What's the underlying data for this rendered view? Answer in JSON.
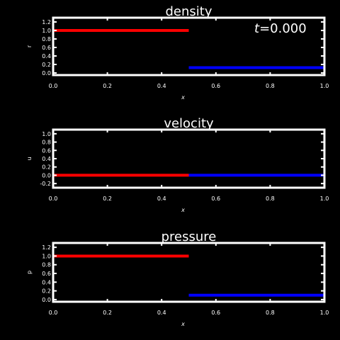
{
  "time_label": {
    "var": "t",
    "eq": "=",
    "value": "0.000"
  },
  "chart_data": [
    {
      "type": "line",
      "title": "density",
      "xlabel": "x",
      "ylabel": "r",
      "xlim": [
        0,
        1
      ],
      "ylim": [
        -0.05,
        1.3
      ],
      "xticks": [
        "0.0",
        "0.2",
        "0.4",
        "0.6",
        "0.8",
        "1.0"
      ],
      "yticks": [
        "0.0",
        "0.2",
        "0.4",
        "0.6",
        "0.8",
        "1.0",
        "1.2"
      ],
      "series": [
        {
          "color": "#ff0000",
          "x": [
            0.0,
            0.5
          ],
          "y": [
            1.0,
            1.0
          ]
        },
        {
          "color": "#0000ff",
          "x": [
            0.5,
            1.0
          ],
          "y": [
            0.125,
            0.125
          ]
        }
      ]
    },
    {
      "type": "line",
      "title": "velocity",
      "xlabel": "x",
      "ylabel": "u",
      "xlim": [
        0,
        1
      ],
      "ylim": [
        -0.3,
        1.1
      ],
      "xticks": [
        "0.0",
        "0.2",
        "0.4",
        "0.6",
        "0.8",
        "1.0"
      ],
      "yticks": [
        "-0.2",
        "0.0",
        "0.2",
        "0.4",
        "0.6",
        "0.8",
        "1.0"
      ],
      "series": [
        {
          "color": "#ff0000",
          "x": [
            0.0,
            0.5
          ],
          "y": [
            0.0,
            0.0
          ]
        },
        {
          "color": "#0000ff",
          "x": [
            0.5,
            1.0
          ],
          "y": [
            0.0,
            0.0
          ]
        }
      ]
    },
    {
      "type": "line",
      "title": "pressure",
      "xlabel": "x",
      "ylabel": "p",
      "xlim": [
        0,
        1
      ],
      "ylim": [
        -0.05,
        1.3
      ],
      "xticks": [
        "0.0",
        "0.2",
        "0.4",
        "0.6",
        "0.8",
        "1.0"
      ],
      "yticks": [
        "0.0",
        "0.2",
        "0.4",
        "0.6",
        "0.8",
        "1.0",
        "1.2"
      ],
      "series": [
        {
          "color": "#ff0000",
          "x": [
            0.0,
            0.5
          ],
          "y": [
            1.0,
            1.0
          ]
        },
        {
          "color": "#0000ff",
          "x": [
            0.5,
            1.0
          ],
          "y": [
            0.1,
            0.1
          ]
        }
      ]
    }
  ]
}
